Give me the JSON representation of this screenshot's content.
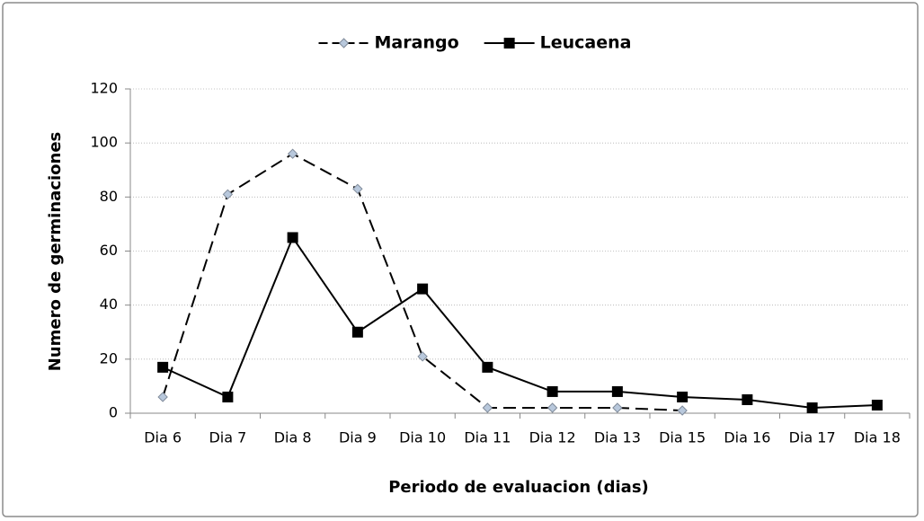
{
  "chart_data": {
    "type": "line",
    "x_label": "Periodo de evaluacion (dias)",
    "y_label": "Numero de germinaciones",
    "categories": [
      "Dia 6",
      "Dia 7",
      "Dia 8",
      "Dia 9",
      "Dia 10",
      "Dia 11",
      "Dia 12",
      "Dia 13",
      "Dia 15",
      "Dia 16",
      "Dia 17",
      "Dia 18"
    ],
    "series": [
      {
        "name": "Marango",
        "color": "#000000",
        "marker_color": "#b8c8dc",
        "dash": "dashed",
        "marker": "diamond",
        "values": [
          6,
          81,
          96,
          83,
          21,
          2,
          2,
          2,
          1,
          null,
          null,
          null
        ]
      },
      {
        "name": "Leucaena",
        "color": "#000000",
        "marker_color": "#000000",
        "dash": "solid",
        "marker": "square",
        "values": [
          17,
          6,
          65,
          30,
          46,
          17,
          8,
          8,
          6,
          5,
          2,
          3
        ]
      }
    ],
    "ylim": [
      0,
      120
    ],
    "yticks": [
      0,
      20,
      40,
      60,
      80,
      100,
      120
    ],
    "grid": true,
    "legend": "top"
  }
}
